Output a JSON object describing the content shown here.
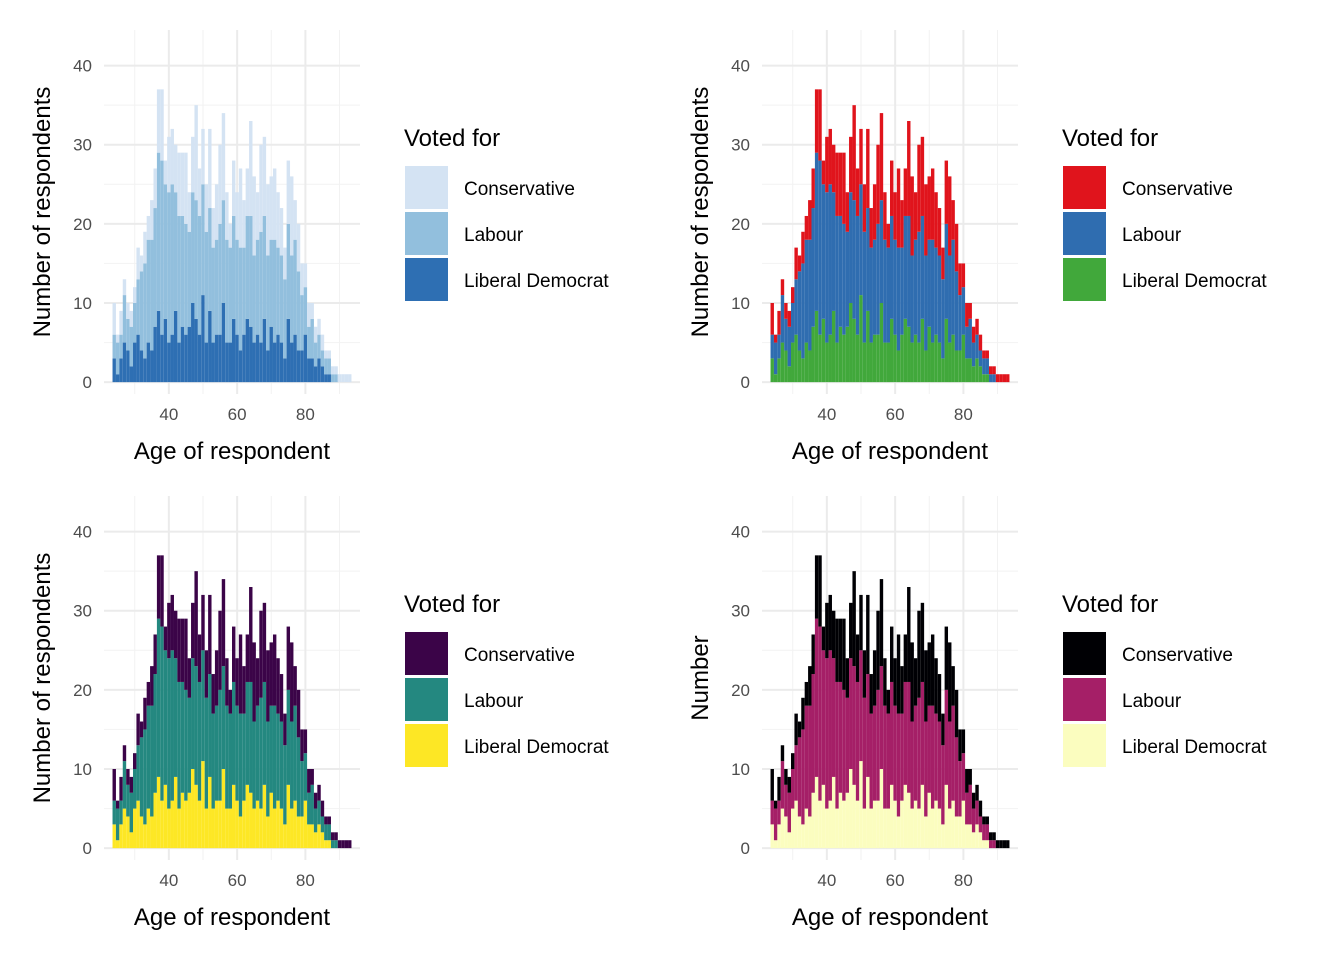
{
  "chart_data": [
    {
      "type": "bar",
      "stacked": true,
      "xlabel": "Age of respondent",
      "ylabel": "Number of respondents",
      "xticks": [
        40,
        60,
        80
      ],
      "yticks": [
        0,
        10,
        20,
        30,
        40
      ],
      "xlim": [
        21,
        96
      ],
      "ylim": [
        -1.5,
        44.5
      ],
      "grid": true,
      "legend": {
        "title": "Voted for",
        "position": "right"
      },
      "palette": "Blues",
      "series": [
        {
          "name": "Conservative",
          "color": "#D4E3F3"
        },
        {
          "name": "Labour",
          "color": "#92BFDD"
        },
        {
          "name": "Liberal Democrat",
          "color": "#2E6FB3"
        }
      ]
    },
    {
      "type": "bar",
      "stacked": true,
      "xlabel": "Age of respondent",
      "ylabel": "Number of respondents",
      "xticks": [
        40,
        60,
        80
      ],
      "yticks": [
        0,
        10,
        20,
        30,
        40
      ],
      "xlim": [
        21,
        96
      ],
      "ylim": [
        -1.5,
        44.5
      ],
      "grid": true,
      "legend": {
        "title": "Voted for",
        "position": "right"
      },
      "palette": "Set1",
      "series": [
        {
          "name": "Conservative",
          "color": "#E0141C"
        },
        {
          "name": "Labour",
          "color": "#2F6DB0"
        },
        {
          "name": "Liberal Democrat",
          "color": "#41A83B"
        }
      ]
    },
    {
      "type": "bar",
      "stacked": true,
      "xlabel": "Age of respondent",
      "ylabel": "Number of respondents",
      "xticks": [
        40,
        60,
        80
      ],
      "yticks": [
        0,
        10,
        20,
        30,
        40
      ],
      "xlim": [
        21,
        96
      ],
      "ylim": [
        -1.5,
        44.5
      ],
      "grid": true,
      "legend": {
        "title": "Voted for",
        "position": "right"
      },
      "palette": "viridis",
      "series": [
        {
          "name": "Conservative",
          "color": "#3B0448"
        },
        {
          "name": "Labour",
          "color": "#248880"
        },
        {
          "name": "Liberal Democrat",
          "color": "#FDE725"
        }
      ]
    },
    {
      "type": "bar",
      "stacked": true,
      "xlabel": "Age of respondent",
      "ylabel": "Number",
      "xticks": [
        40,
        60,
        80
      ],
      "yticks": [
        0,
        10,
        20,
        30,
        40
      ],
      "xlim": [
        21,
        96
      ],
      "ylim": [
        -1.5,
        44.5
      ],
      "grid": true,
      "legend": {
        "title": "Voted for",
        "position": "right"
      },
      "palette": "magma",
      "series": [
        {
          "name": "Conservative",
          "color": "#000004"
        },
        {
          "name": "Labour",
          "color": "#A51F67"
        },
        {
          "name": "Liberal Democrat",
          "color": "#FBFDBF"
        }
      ]
    }
  ],
  "histogram": {
    "ages": [
      24,
      25,
      26,
      27,
      28,
      29,
      30,
      31,
      32,
      33,
      34,
      35,
      36,
      37,
      38,
      39,
      40,
      41,
      42,
      43,
      44,
      45,
      46,
      47,
      48,
      49,
      50,
      51,
      52,
      53,
      54,
      55,
      56,
      57,
      58,
      59,
      60,
      61,
      62,
      63,
      64,
      65,
      66,
      67,
      68,
      69,
      70,
      71,
      72,
      73,
      74,
      75,
      76,
      77,
      78,
      79,
      80,
      81,
      82,
      83,
      84,
      85,
      86,
      87,
      88,
      89,
      90,
      91,
      92,
      93
    ],
    "conservative": [
      4,
      1,
      3,
      2,
      2,
      2,
      2,
      4,
      2,
      4,
      3,
      5,
      5,
      8,
      9,
      3,
      7,
      7,
      6,
      8,
      8,
      9,
      5,
      7,
      12,
      6,
      7,
      6,
      10,
      5,
      7,
      10,
      11,
      6,
      3,
      7,
      6,
      10,
      6,
      6,
      12,
      10,
      6,
      11,
      10,
      9,
      8,
      9,
      7,
      6,
      4,
      8,
      10,
      5,
      6,
      4,
      3,
      3,
      2,
      2,
      2,
      2,
      1,
      1,
      1,
      1,
      1,
      1,
      1,
      1
    ],
    "labour": [
      3,
      4,
      3,
      6,
      4,
      5,
      5,
      7,
      10,
      12,
      13,
      14,
      15,
      20,
      22,
      17,
      19,
      19,
      15,
      16,
      14,
      14,
      12,
      14,
      15,
      15,
      14,
      14,
      13,
      12,
      12,
      14,
      13,
      13,
      12,
      13,
      12,
      13,
      11,
      13,
      14,
      11,
      12,
      14,
      13,
      12,
      11,
      13,
      11,
      11,
      10,
      12,
      11,
      12,
      10,
      7,
      6,
      4,
      5,
      3,
      3,
      2,
      2,
      2,
      1,
      1,
      0,
      0,
      0,
      0
    ],
    "libdem": [
      3,
      1,
      3,
      5,
      4,
      2,
      5,
      6,
      4,
      3,
      5,
      4,
      7,
      9,
      6,
      8,
      5,
      6,
      9,
      5,
      7,
      6,
      7,
      10,
      8,
      6,
      11,
      5,
      9,
      5,
      6,
      6,
      10,
      5,
      5,
      8,
      6,
      4,
      6,
      8,
      7,
      5,
      6,
      5,
      8,
      4,
      7,
      5,
      6,
      5,
      3,
      8,
      5,
      6,
      4,
      4,
      6,
      3,
      3,
      2,
      3,
      2,
      1,
      1,
      0,
      0,
      0,
      0,
      0,
      0
    ]
  }
}
